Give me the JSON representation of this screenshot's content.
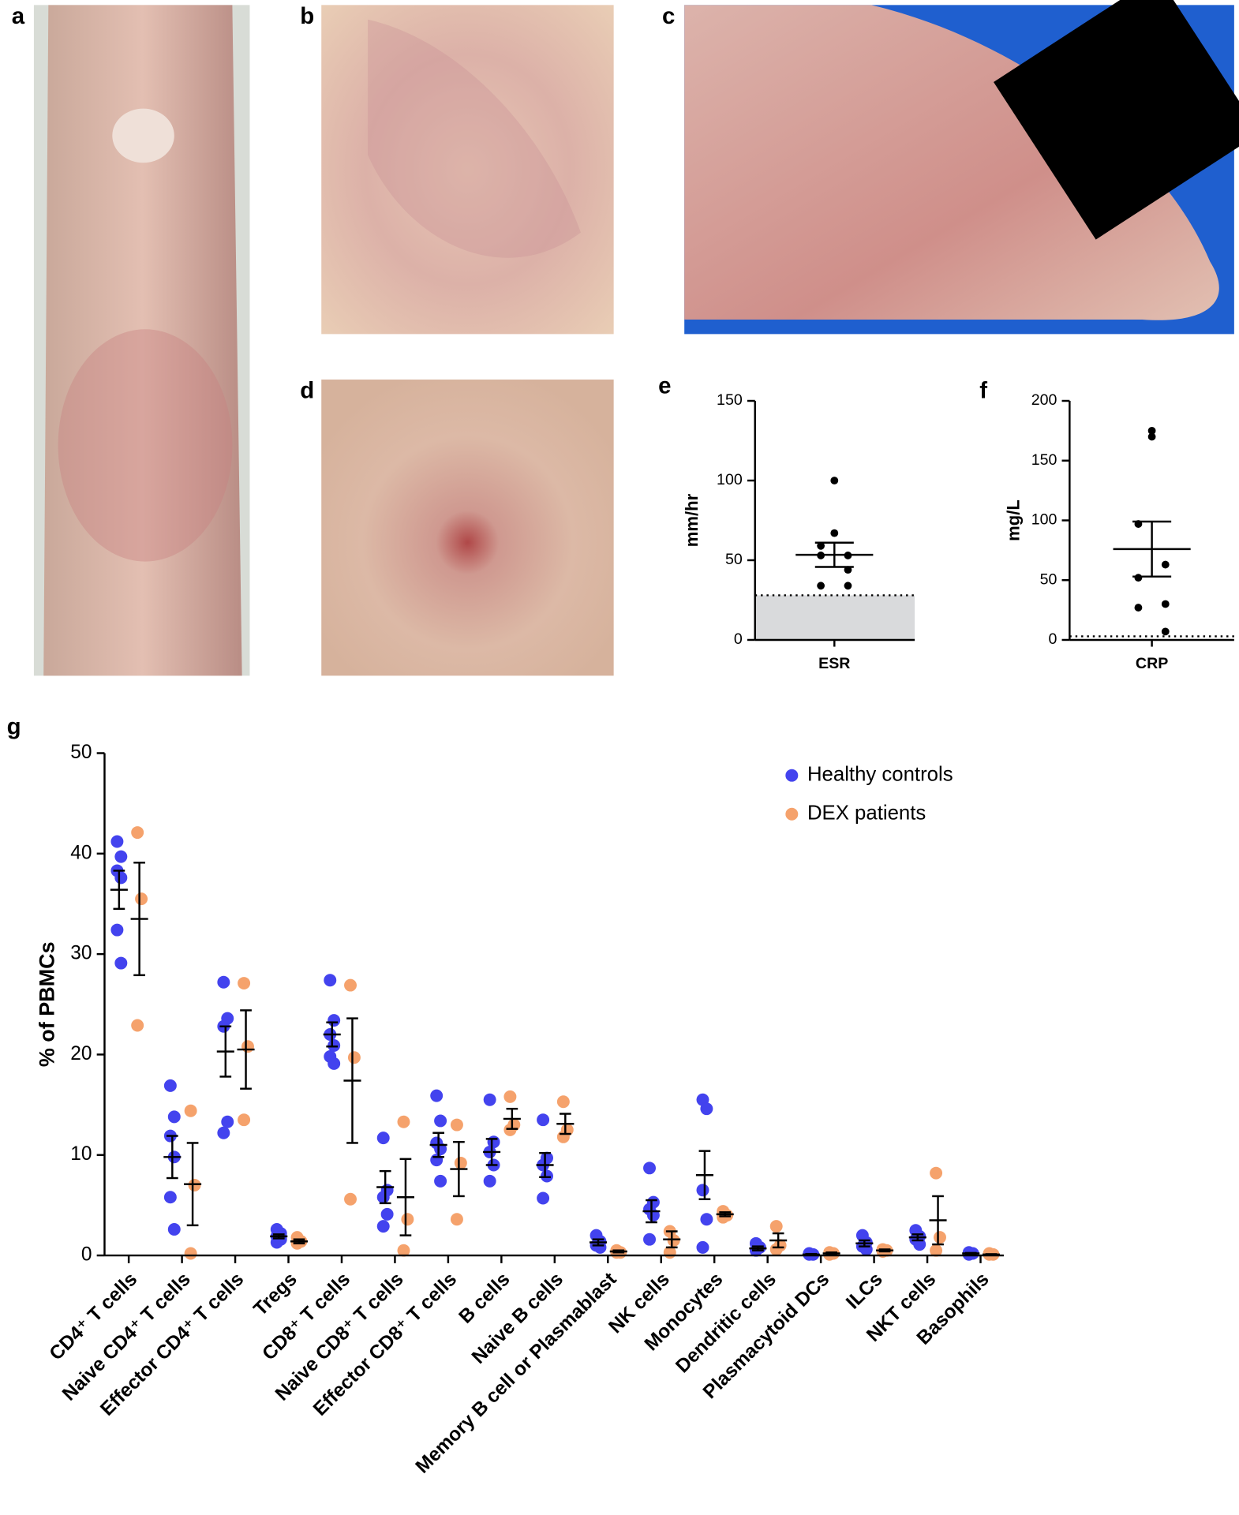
{
  "photos": [
    {
      "panel": "a"
    },
    {
      "panel": "b"
    },
    {
      "panel": "c"
    },
    {
      "panel": "d"
    }
  ],
  "chart_data": [
    {
      "panel": "e",
      "type": "column-scatter",
      "ylabel": "mm/hr",
      "categories": [
        "ESR"
      ],
      "values": [
        100,
        67,
        59,
        53,
        53,
        44,
        34,
        34
      ],
      "mean": 53.4,
      "sem": 7.6,
      "reference_upper": 28,
      "color": "#000000",
      "reference_color": "#d9dadc",
      "ylim": [
        0,
        150
      ],
      "yticks": [
        0,
        50,
        100,
        150
      ]
    },
    {
      "panel": "f",
      "type": "column-scatter",
      "ylabel": "mg/L",
      "categories": [
        "CRP"
      ],
      "values": [
        175,
        170,
        97,
        63,
        52,
        30,
        27,
        7
      ],
      "mean": 76,
      "sem": 23,
      "reference_upper": 3,
      "color": "#000000",
      "reference_color": "#ffffff",
      "ylim": [
        0,
        200
      ],
      "yticks": [
        0,
        50,
        100,
        150,
        200
      ]
    },
    {
      "panel": "g",
      "type": "grouped-column-scatter",
      "ylabel": "% of PBMCs",
      "categories": [
        "CD4⁺ T cells",
        "Naive CD4⁺ T cells",
        "Effector CD4⁺ T cells",
        "Tregs",
        "CD8⁺ T cells",
        "Naive CD8⁺ T cells",
        "Effector CD8⁺ T cells",
        "B cells",
        "Naive B cells",
        "Memory B cell or Plasmablast",
        "NK cells",
        "Monocytes",
        "Dendritic cells",
        "Plasmacytoid DCs",
        "ILCs",
        "NKT cells",
        "Basophils"
      ],
      "series": [
        {
          "name": "Healthy controls",
          "color": "#4343ee",
          "values": [
            [
              41.2,
              39.7,
              38.3,
              37.6,
              32.4,
              29.1
            ],
            [
              16.9,
              13.8,
              11.9,
              9.8,
              5.8,
              2.6
            ],
            [
              27.2,
              23.6,
              22.8,
              13.3,
              12.2
            ],
            [
              2.6,
              2.2,
              1.9,
              1.6,
              1.3
            ],
            [
              27.4,
              23.4,
              22.0,
              20.9,
              19.8,
              19.1
            ],
            [
              11.7,
              6.5,
              5.8,
              4.1,
              2.9
            ],
            [
              15.9,
              13.4,
              11.2,
              10.6,
              9.5,
              7.4
            ],
            [
              15.5,
              11.3,
              10.3,
              9.0,
              7.4
            ],
            [
              13.5,
              9.7,
              9.0,
              7.9,
              5.7
            ],
            [
              2.0,
              1.4,
              1.0,
              0.8
            ],
            [
              8.7,
              5.3,
              4.6,
              4.0,
              1.6
            ],
            [
              15.5,
              14.6,
              6.5,
              3.6,
              0.8
            ],
            [
              1.2,
              0.8,
              0.5
            ],
            [
              0.2,
              0.1,
              0.1
            ],
            [
              2.0,
              1.3,
              0.9,
              0.6
            ],
            [
              2.5,
              1.9,
              1.6,
              1.1
            ],
            [
              0.3,
              0.2,
              0.1
            ]
          ],
          "mean": [
            36.4,
            9.8,
            20.3,
            1.9,
            22.0,
            6.8,
            11.0,
            10.3,
            9.0,
            1.3,
            4.4,
            8.0,
            0.7,
            0.1,
            1.2,
            1.8,
            0.2
          ],
          "sem": [
            1.9,
            2.1,
            2.5,
            0.2,
            1.2,
            1.6,
            1.2,
            1.3,
            1.2,
            0.3,
            1.1,
            2.4,
            0.2,
            0.05,
            0.3,
            0.3,
            0.05
          ]
        },
        {
          "name": "DEX patients",
          "color": "#f5a26c",
          "values": [
            [
              42.1,
              35.5,
              22.9
            ],
            [
              14.4,
              7.0,
              0.2
            ],
            [
              27.1,
              20.8,
              13.5
            ],
            [
              1.8,
              1.4,
              1.2
            ],
            [
              26.9,
              19.7,
              5.6
            ],
            [
              13.3,
              3.6,
              0.5
            ],
            [
              13.0,
              9.2,
              3.6
            ],
            [
              15.8,
              13.0,
              12.5
            ],
            [
              15.3,
              12.5,
              11.8
            ],
            [
              0.5,
              0.3,
              0.3
            ],
            [
              2.4,
              1.5,
              0.3
            ],
            [
              4.4,
              4.0,
              3.8
            ],
            [
              2.9,
              1.0,
              0.6
            ],
            [
              0.3,
              0.2,
              0.1
            ],
            [
              0.6,
              0.5,
              0.4
            ],
            [
              8.2,
              1.8,
              0.5
            ],
            [
              0.2,
              0.1,
              0.1
            ]
          ],
          "mean": [
            33.5,
            7.1,
            20.5,
            1.4,
            17.4,
            5.8,
            8.6,
            13.6,
            13.1,
            0.4,
            1.6,
            4.1,
            1.5,
            0.2,
            0.5,
            3.5,
            0.1
          ],
          "sem": [
            5.6,
            4.1,
            3.9,
            0.2,
            6.2,
            3.8,
            2.7,
            1.0,
            1.0,
            0.1,
            0.8,
            0.2,
            0.7,
            0.1,
            0.1,
            2.4,
            0.03
          ]
        }
      ],
      "ylim": [
        0,
        50
      ],
      "yticks": [
        0,
        10,
        20,
        30,
        40,
        50
      ],
      "legend": "upper right"
    }
  ]
}
